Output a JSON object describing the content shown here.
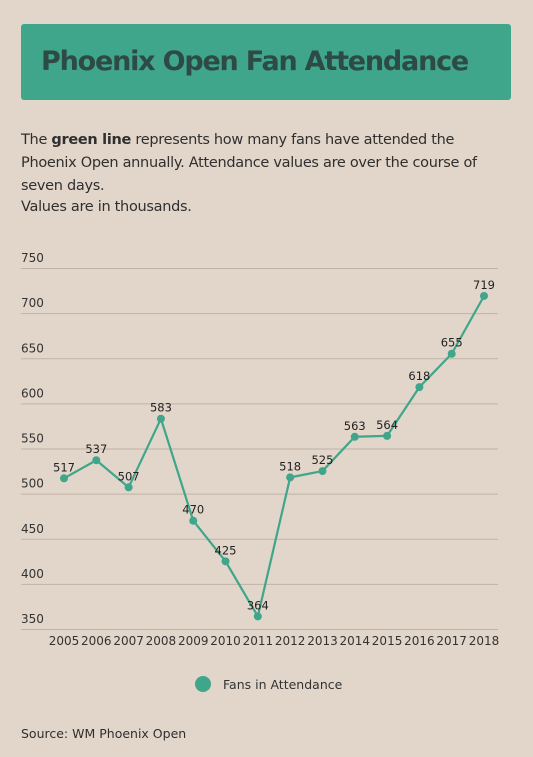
{
  "header": {
    "title": "Phoenix Open Fan Attendance"
  },
  "description": {
    "prefix": "The ",
    "highlight": "green line",
    "suffix": " represents how many fans have attended the Phoenix Open annually. Attendance values are over the course of seven days."
  },
  "note": "Values are in thousands.",
  "source": "Source: WM Phoenix Open",
  "colors": {
    "background": "#e2d6ca",
    "accent": "#3fa58b",
    "title": "#2e4a45",
    "grid": "#bfb3a7"
  },
  "chart_data": {
    "type": "line",
    "x": [
      "2005",
      "2006",
      "2007",
      "2008",
      "2009",
      "2010",
      "2011",
      "2012",
      "2013",
      "2014",
      "2015",
      "2016",
      "2017",
      "2018"
    ],
    "series": [
      {
        "name": "Fans in Attendance",
        "values": [
          517,
          537,
          507,
          583,
          470,
          425,
          364,
          518,
          525,
          563,
          564,
          618,
          655,
          719
        ]
      }
    ],
    "yticks": [
      350,
      400,
      450,
      500,
      550,
      600,
      650,
      700,
      750
    ],
    "ylim": [
      350,
      750
    ],
    "grid": true,
    "legend": "bottom-center",
    "data_labels": true
  }
}
